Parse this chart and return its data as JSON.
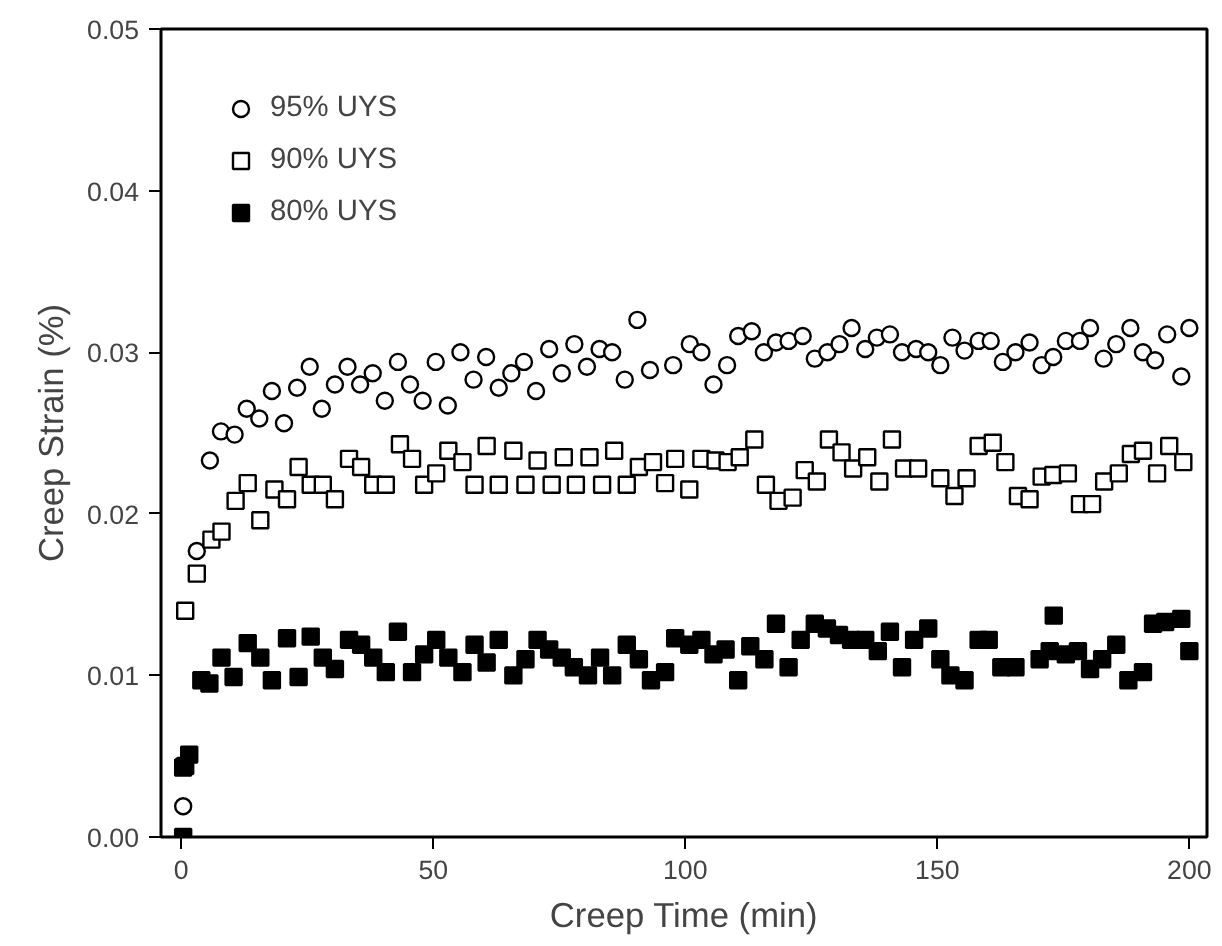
{
  "chart_data": {
    "type": "scatter",
    "xlabel": "Creep Time (min)",
    "ylabel": "Creep Strain (%)",
    "xlim": [
      -4,
      203.5
    ],
    "ylim": [
      0,
      0.05
    ],
    "xticks": [
      0,
      50,
      100,
      150,
      200
    ],
    "yticks": [
      {
        "value": 0,
        "label": "0.00"
      },
      {
        "value": 0.01,
        "label": "0.01"
      },
      {
        "value": 0.02,
        "label": "0.02"
      },
      {
        "value": 0.03,
        "label": "0.03"
      },
      {
        "value": 0.04,
        "label": "0.04"
      },
      {
        "value": 0.05,
        "label": "0.05"
      }
    ],
    "grid": false,
    "legend": "top left",
    "series": [
      {
        "name": "95% UYS",
        "color": "#ffffff",
        "marker": "circle",
        "x": [
          0.4,
          3.1,
          5.7,
          7.9,
          10.6,
          13,
          15.5,
          18,
          20.4,
          23,
          25.5,
          27.9,
          30.5,
          33,
          35.5,
          38,
          40.4,
          43,
          45.4,
          47.9,
          50.5,
          52.9,
          55.4,
          58,
          60.5,
          63,
          65.5,
          68,
          70.4,
          73,
          75.5,
          78,
          80.5,
          83,
          85.5,
          88,
          90.5,
          93,
          97.6,
          100.9,
          103.2,
          105.6,
          108.3,
          110.5,
          113.2,
          115.6,
          118,
          120.5,
          123.3,
          125.7,
          128.2,
          130.6,
          133,
          135.7,
          138,
          140.6,
          143,
          145.8,
          148.2,
          150.6,
          153,
          155.4,
          158.2,
          160.6,
          163,
          165.5,
          168.3,
          170.7,
          173,
          175.5,
          178.3,
          180.3,
          183,
          185.5,
          188.3,
          190.8,
          193.2,
          195.6,
          198.4,
          200
        ],
        "values": [
          0.0019,
          0.0177,
          0.0233,
          0.0251,
          0.0249,
          0.0265,
          0.0259,
          0.0276,
          0.0256,
          0.0278,
          0.0291,
          0.0265,
          0.028,
          0.0291,
          0.028,
          0.0287,
          0.027,
          0.0294,
          0.028,
          0.027,
          0.0294,
          0.0267,
          0.03,
          0.0283,
          0.0297,
          0.0278,
          0.0287,
          0.0294,
          0.0276,
          0.0302,
          0.0287,
          0.0305,
          0.0291,
          0.0302,
          0.03,
          0.0283,
          0.032,
          0.0289,
          0.0292,
          0.0305,
          0.03,
          0.028,
          0.0292,
          0.031,
          0.0313,
          0.03,
          0.0306,
          0.0307,
          0.031,
          0.0296,
          0.03,
          0.0305,
          0.0315,
          0.0302,
          0.0309,
          0.0311,
          0.03,
          0.0302,
          0.03,
          0.0292,
          0.0309,
          0.0301,
          0.0307,
          0.0307,
          0.0294,
          0.03,
          0.0306,
          0.0292,
          0.0297,
          0.0307,
          0.0307,
          0.0315,
          0.0296,
          0.0305,
          0.0315,
          0.03,
          0.0295,
          0.0311,
          0.0285,
          0.0315
        ]
      },
      {
        "name": "90% UYS",
        "color": "#ffffff",
        "marker": "square",
        "x": [
          0.4,
          0.8,
          3.1,
          6,
          8,
          10.8,
          13.2,
          15.7,
          18.5,
          21,
          23.3,
          25.7,
          28.1,
          30.5,
          33.3,
          35.7,
          38.1,
          40.6,
          43.4,
          45.8,
          48.2,
          50.6,
          53,
          55.8,
          58.2,
          60.6,
          63,
          65.9,
          68.3,
          70.7,
          73.5,
          75.9,
          78.3,
          81,
          83.5,
          85.9,
          88.4,
          90.8,
          93.6,
          96,
          98,
          100.8,
          103.2,
          106,
          108.4,
          110.8,
          113.7,
          116,
          118.5,
          121.3,
          123.7,
          126.1,
          128.5,
          131,
          133.3,
          136.1,
          138.5,
          141,
          143.4,
          146.2,
          150.6,
          153.4,
          155.8,
          158.2,
          161,
          163.5,
          166,
          168.3,
          170.7,
          173,
          175.9,
          178.3,
          180.7,
          183.1,
          186,
          188.4,
          190.8,
          193.6,
          196,
          198.8
        ],
        "values": [
          0.0043,
          0.014,
          0.0163,
          0.0184,
          0.0189,
          0.0208,
          0.0219,
          0.0196,
          0.0215,
          0.0209,
          0.0229,
          0.0218,
          0.0218,
          0.0209,
          0.0234,
          0.0229,
          0.0218,
          0.0218,
          0.0243,
          0.0234,
          0.0218,
          0.0225,
          0.0239,
          0.0232,
          0.0218,
          0.0242,
          0.0218,
          0.0239,
          0.0218,
          0.0233,
          0.0218,
          0.0235,
          0.0218,
          0.0235,
          0.0218,
          0.0239,
          0.0218,
          0.0229,
          0.0232,
          0.0219,
          0.0234,
          0.0215,
          0.0234,
          0.0233,
          0.0232,
          0.0235,
          0.0246,
          0.0218,
          0.0208,
          0.021,
          0.0227,
          0.022,
          0.0246,
          0.0238,
          0.0228,
          0.0235,
          0.022,
          0.0246,
          0.0228,
          0.0228,
          0.0222,
          0.0211,
          0.0222,
          0.0242,
          0.0244,
          0.0232,
          0.0211,
          0.0209,
          0.0223,
          0.0224,
          0.0225,
          0.0206,
          0.0206,
          0.022,
          0.0225,
          0.0237,
          0.0239,
          0.0225,
          0.0242,
          0.0232
        ]
      },
      {
        "name": "80% UYS",
        "color": "#000000",
        "marker": "square",
        "x": [
          0.4,
          0.8,
          1.6,
          4,
          5.6,
          8,
          10.4,
          13.2,
          15.7,
          18,
          21,
          23.3,
          25.7,
          28.1,
          30.5,
          33.3,
          35.7,
          38.1,
          40.6,
          43,
          45.8,
          48.2,
          50.6,
          53,
          55.8,
          58.2,
          60.6,
          63,
          65.9,
          68.3,
          70.7,
          73,
          75.5,
          77.9,
          80.7,
          83.1,
          85.5,
          88.4,
          90.8,
          93.2,
          96,
          98,
          100.8,
          103.2,
          105.6,
          108,
          110.5,
          112.9,
          115.7,
          118,
          120.5,
          122.9,
          125.7,
          128.1,
          130.5,
          132.9,
          135.7,
          138.2,
          140.6,
          143,
          145.4,
          148.2,
          150.6,
          152.6,
          155.4,
          158.2,
          160.2,
          162.7,
          165.5,
          170.3,
          172.3,
          173.1,
          175.5,
          177.9,
          180.3,
          182.7,
          185.5,
          187.9,
          190.8,
          192.8,
          195.2,
          198.4,
          200
        ],
        "values": [
          0,
          0.0044,
          0.0051,
          0.0097,
          0.0095,
          0.0111,
          0.0099,
          0.012,
          0.0111,
          0.0097,
          0.0123,
          0.0099,
          0.0124,
          0.0111,
          0.0104,
          0.0122,
          0.0119,
          0.0111,
          0.0102,
          0.0127,
          0.0102,
          0.0113,
          0.0122,
          0.0111,
          0.0102,
          0.0119,
          0.0108,
          0.0122,
          0.01,
          0.011,
          0.0122,
          0.0116,
          0.0111,
          0.0105,
          0.01,
          0.0111,
          0.01,
          0.0119,
          0.011,
          0.0097,
          0.0102,
          0.0123,
          0.0119,
          0.0122,
          0.0113,
          0.0116,
          0.0097,
          0.0118,
          0.011,
          0.0132,
          0.0105,
          0.0122,
          0.0132,
          0.0129,
          0.0125,
          0.0122,
          0.0122,
          0.0115,
          0.0127,
          0.0105,
          0.0122,
          0.0129,
          0.011,
          0.01,
          0.0097,
          0.0122,
          0.0122,
          0.0105,
          0.0105,
          0.011,
          0.0115,
          0.0137,
          0.0113,
          0.0115,
          0.0104,
          0.011,
          0.0119,
          0.0097,
          0.0102,
          0.0132,
          0.0133,
          0.0135,
          0.0115
        ]
      }
    ]
  }
}
